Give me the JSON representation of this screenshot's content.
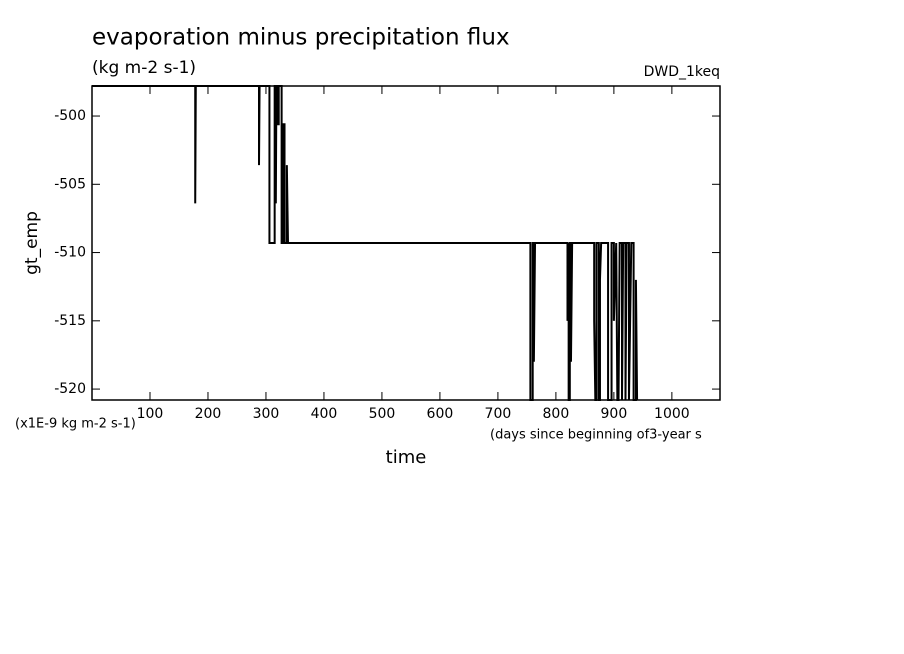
{
  "chart_data": {
    "type": "line",
    "title": "evaporation minus precipitation flux",
    "subtitle": "(kg m-2 s-1)",
    "annotation": "DWD_1keq",
    "y_label": "gt_emp",
    "y_unit": "(x1E-9 kg m-2 s-1)",
    "x_unit": "(days since beginning of3-year s",
    "x_label": "time",
    "color": "#000000",
    "xlim": [
      0,
      1083
    ],
    "xticks": [
      100,
      200,
      300,
      400,
      500,
      600,
      700,
      800,
      900,
      1000
    ],
    "ylim": [
      -520.8,
      -497.8
    ],
    "yticks": [
      -500,
      -505,
      -510,
      -515,
      -520
    ],
    "x": [
      0,
      178,
      178,
      179,
      288,
      288,
      289,
      306,
      306,
      315,
      315,
      317,
      317,
      318,
      320,
      320,
      322,
      322,
      327,
      327,
      330,
      330,
      332,
      332,
      336,
      336,
      338,
      756,
      756,
      760,
      760,
      762,
      762,
      764,
      820,
      820,
      822,
      822,
      824,
      824,
      826,
      826,
      828,
      866,
      866,
      868,
      870,
      870,
      874,
      874,
      876,
      876,
      878,
      890,
      890,
      896,
      896,
      900,
      900,
      904,
      906,
      908,
      910,
      914,
      914,
      916,
      920,
      920,
      922,
      926,
      926,
      930,
      934,
      934,
      938,
      938,
      940
    ],
    "values": [
      -497.8,
      -497.8,
      -506.4,
      -497.8,
      -497.8,
      -503.6,
      -497.8,
      -497.8,
      -509.3,
      -509.3,
      -497.8,
      -497.8,
      -506.4,
      -497.8,
      -497.8,
      -500.6,
      -500.6,
      -497.8,
      -497.8,
      -509.3,
      -509.3,
      -500.6,
      -500.6,
      -509.3,
      -509.3,
      -503.6,
      -509.3,
      -509.3,
      -520.8,
      -520.8,
      -509.3,
      -509.3,
      -518,
      -509.3,
      -509.3,
      -515,
      -509.3,
      -520.8,
      -520.8,
      -509.3,
      -509.3,
      -518,
      -509.3,
      -509.3,
      -515,
      -520.8,
      -520.8,
      -509.3,
      -509.3,
      -520.8,
      -520.8,
      -512,
      -509.3,
      -509.3,
      -520.8,
      -520.8,
      -509.3,
      -509.3,
      -515,
      -509.3,
      -520.8,
      -520.8,
      -509.3,
      -509.3,
      -520.8,
      -509.3,
      -509.3,
      -520.8,
      -509.3,
      -509.3,
      -520.8,
      -509.3,
      -509.3,
      -520.8,
      -520.8,
      -512,
      -520.8
    ]
  }
}
